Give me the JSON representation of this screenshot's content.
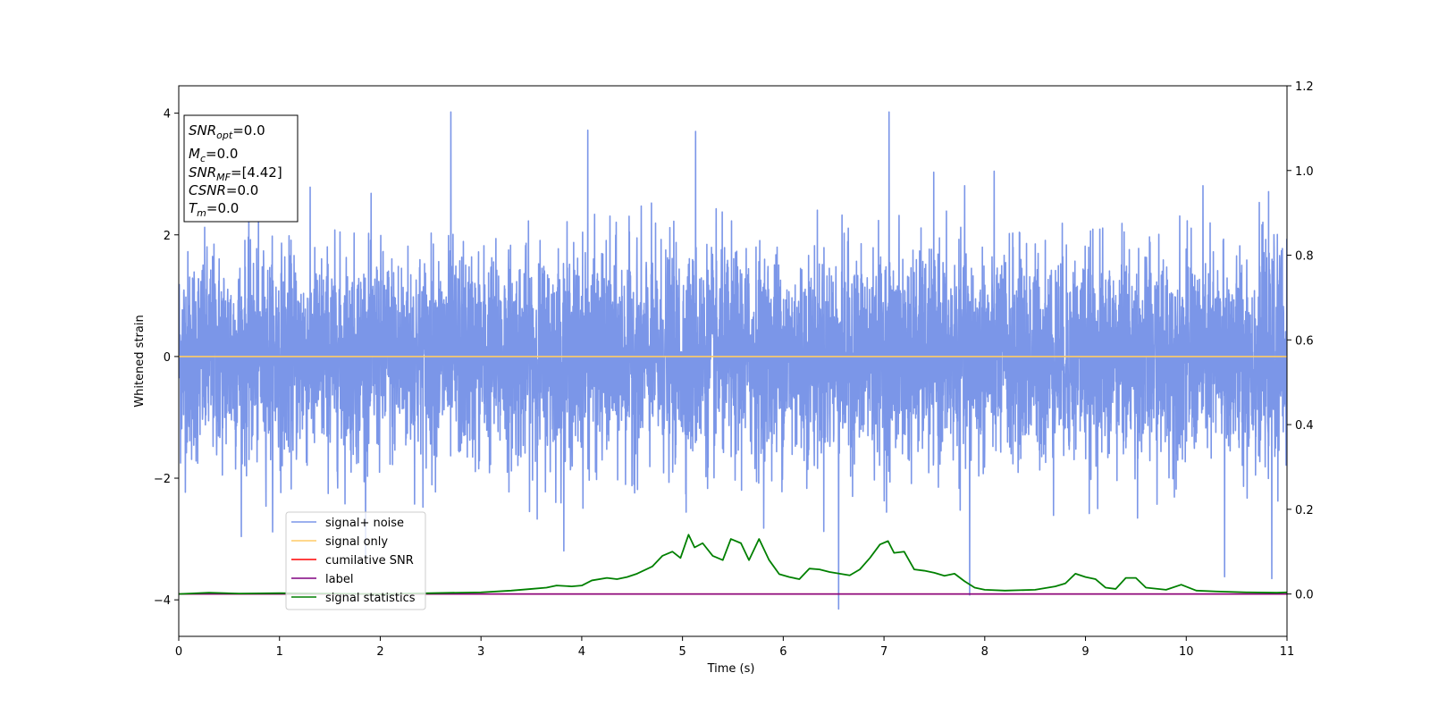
{
  "chart_data": {
    "type": "line",
    "xlabel": "Time (s)",
    "ylabel": "Whitened strain",
    "xlim": [
      0,
      11
    ],
    "ylim": [
      -4.6,
      4.45
    ],
    "y2lim": [
      -0.1,
      1.2
    ],
    "grid": false,
    "legend_placement": "lower-left",
    "x_ticks": [
      "0",
      "1",
      "2",
      "3",
      "4",
      "5",
      "6",
      "7",
      "8",
      "9",
      "10",
      "11"
    ],
    "y_ticks": [
      "4",
      "2",
      "0",
      "−2",
      "−4"
    ],
    "y2_ticks": [
      "1.2",
      "1.0",
      "0.8",
      "0.6",
      "0.4",
      "0.2",
      "0.0"
    ],
    "info_box": {
      "snr_opt": {
        "base": "SNR",
        "sub": "opt",
        "value": "=0.0"
      },
      "mc": {
        "base": "M",
        "sub": "c",
        "value": "=0.0"
      },
      "snr_mf": {
        "base": "SNR",
        "sub": "MF",
        "value": "=[4.42]"
      },
      "csnr": {
        "base": "CSNR",
        "value": "=0.0"
      },
      "tm": {
        "base": "T",
        "sub": "m",
        "value": "=0.0"
      }
    },
    "series": [
      {
        "name": "signal+ noise",
        "color": "#7b96e8",
        "axis": "left",
        "description_values": "dense noise trace, approx. ±2 with spikes to about ±4",
        "peaks": [
          [
            2.7,
            4.02
          ],
          [
            7.05,
            4.02
          ],
          [
            4.06,
            3.72
          ],
          [
            5.13,
            3.7
          ],
          [
            6.55,
            -4.15
          ],
          [
            7.85,
            -3.92
          ],
          [
            10.38,
            -3.62
          ],
          [
            10.85,
            -3.65
          ]
        ]
      },
      {
        "name": "signal only",
        "color": "#ffcc66",
        "axis": "left",
        "x": [
          0,
          11
        ],
        "y": [
          0,
          0
        ]
      },
      {
        "name": "cumilative SNR",
        "color": "#ff0000",
        "axis": "right",
        "x": [
          0,
          11
        ],
        "y": [
          0,
          0
        ]
      },
      {
        "name": "label",
        "color": "#800080",
        "axis": "right",
        "x": [
          0,
          11
        ],
        "y": [
          0,
          0
        ]
      },
      {
        "name": "signal statistics",
        "color": "#008000",
        "axis": "right",
        "x": [
          0,
          0.3,
          0.6,
          1.0,
          1.5,
          2.0,
          2.5,
          3.0,
          3.3,
          3.5,
          3.65,
          3.75,
          3.9,
          4.0,
          4.1,
          4.25,
          4.35,
          4.45,
          4.55,
          4.7,
          4.8,
          4.9,
          4.98,
          5.06,
          5.12,
          5.2,
          5.3,
          5.4,
          5.48,
          5.58,
          5.66,
          5.76,
          5.86,
          5.96,
          6.06,
          6.16,
          6.26,
          6.36,
          6.46,
          6.56,
          6.66,
          6.76,
          6.86,
          6.96,
          7.04,
          7.1,
          7.2,
          7.3,
          7.4,
          7.5,
          7.6,
          7.7,
          7.8,
          7.9,
          8.0,
          8.2,
          8.5,
          8.7,
          8.8,
          8.9,
          9.0,
          9.1,
          9.2,
          9.3,
          9.4,
          9.5,
          9.6,
          9.8,
          9.95,
          10.1,
          10.3,
          10.6,
          10.9,
          11.0
        ],
        "y": [
          0.0,
          0.003,
          0.001,
          0.002,
          0.001,
          0.0,
          0.002,
          0.004,
          0.008,
          0.012,
          0.015,
          0.02,
          0.018,
          0.02,
          0.032,
          0.038,
          0.035,
          0.04,
          0.048,
          0.065,
          0.09,
          0.1,
          0.085,
          0.14,
          0.11,
          0.12,
          0.09,
          0.08,
          0.13,
          0.12,
          0.08,
          0.13,
          0.08,
          0.047,
          0.04,
          0.035,
          0.06,
          0.058,
          0.052,
          0.048,
          0.044,
          0.058,
          0.085,
          0.117,
          0.125,
          0.097,
          0.1,
          0.058,
          0.055,
          0.05,
          0.043,
          0.048,
          0.03,
          0.015,
          0.01,
          0.008,
          0.01,
          0.018,
          0.025,
          0.048,
          0.04,
          0.035,
          0.015,
          0.012,
          0.038,
          0.038,
          0.015,
          0.01,
          0.022,
          0.008,
          0.006,
          0.004,
          0.003,
          0.004
        ]
      }
    ]
  }
}
